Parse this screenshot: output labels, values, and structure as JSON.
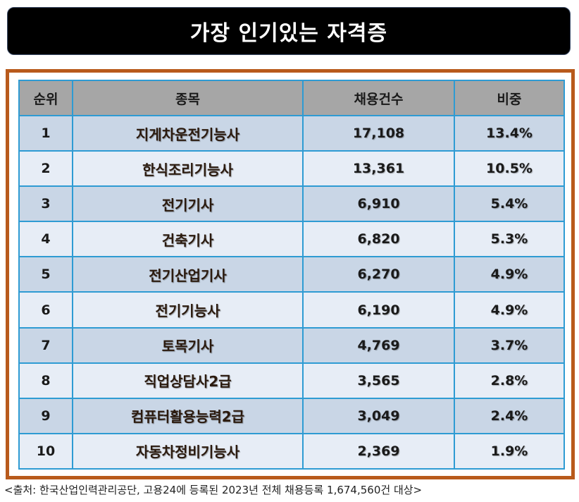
{
  "title": "가장 인기있는 자격증",
  "table": {
    "headers": [
      "순위",
      "종목",
      "채용건수",
      "비중"
    ],
    "rows": [
      {
        "rank": "1",
        "name": "지게차운전기능사",
        "count": "17,108",
        "share": "13.4%"
      },
      {
        "rank": "2",
        "name": "한식조리기능사",
        "count": "13,361",
        "share": "10.5%"
      },
      {
        "rank": "3",
        "name": "전기기사",
        "count": "6,910",
        "share": "5.4%"
      },
      {
        "rank": "4",
        "name": "건축기사",
        "count": "6,820",
        "share": "5.3%"
      },
      {
        "rank": "5",
        "name": "전기산업기사",
        "count": "6,270",
        "share": "4.9%"
      },
      {
        "rank": "6",
        "name": "전기기능사",
        "count": "6,190",
        "share": "4.9%"
      },
      {
        "rank": "7",
        "name": "토목기사",
        "count": "4,769",
        "share": "3.7%"
      },
      {
        "rank": "8",
        "name": "직업상담사2급",
        "count": "3,565",
        "share": "2.8%"
      },
      {
        "rank": "9",
        "name": "컴퓨터활용능력2급",
        "count": "3,049",
        "share": "2.4%"
      },
      {
        "rank": "10",
        "name": "자동차정비기능사",
        "count": "2,369",
        "share": "1.9%"
      }
    ]
  },
  "source": "<출처: 한국산업인력관리공단, 고용24에 등록된 2023년 전체 채용등록 1,674,560건 대상>",
  "colors": {
    "title_bg": "#000000",
    "frame": "#b85a1c",
    "header_bg": "#a6a6a6",
    "row_odd": "#c9d6e6",
    "row_even": "#e7edf6",
    "grid": "#2e9bd3"
  }
}
